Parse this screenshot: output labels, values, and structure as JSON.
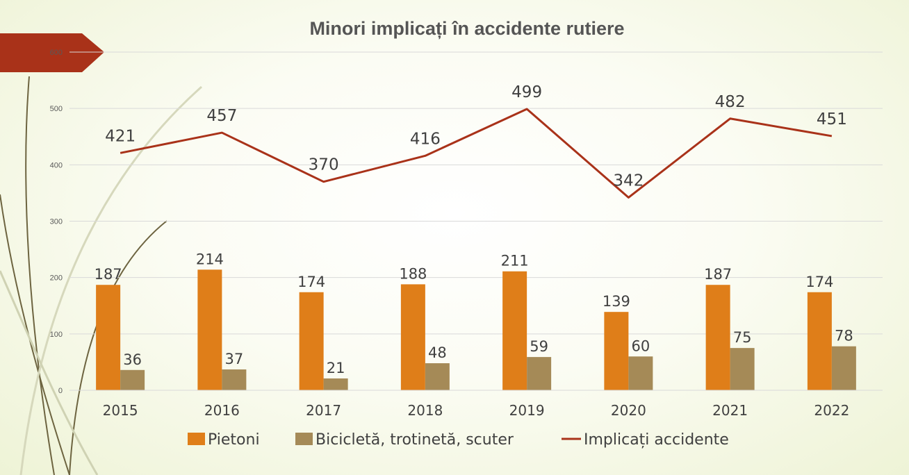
{
  "chart_data": {
    "type": "bar",
    "title": "Minori implicați în accidente rutiere",
    "categories": [
      "2015",
      "2016",
      "2017",
      "2018",
      "2019",
      "2020",
      "2021",
      "2022"
    ],
    "ylim": [
      0,
      600
    ],
    "yticks": [
      0,
      100,
      200,
      300,
      400,
      500,
      600
    ],
    "grid": true,
    "legend": "bottom",
    "series": [
      {
        "name": "Pietoni",
        "type": "bar",
        "color": "#df7e19",
        "values": [
          187,
          214,
          174,
          188,
          211,
          139,
          187,
          174
        ]
      },
      {
        "name": "Bicicletă, trotinetă, scuter",
        "type": "bar",
        "color": "#a58a57",
        "values": [
          36,
          37,
          21,
          48,
          59,
          60,
          75,
          78
        ]
      },
      {
        "name": "Implicați accidente",
        "type": "line",
        "color": "#a93219",
        "values": [
          421,
          457,
          370,
          416,
          499,
          342,
          482,
          451
        ]
      }
    ]
  }
}
